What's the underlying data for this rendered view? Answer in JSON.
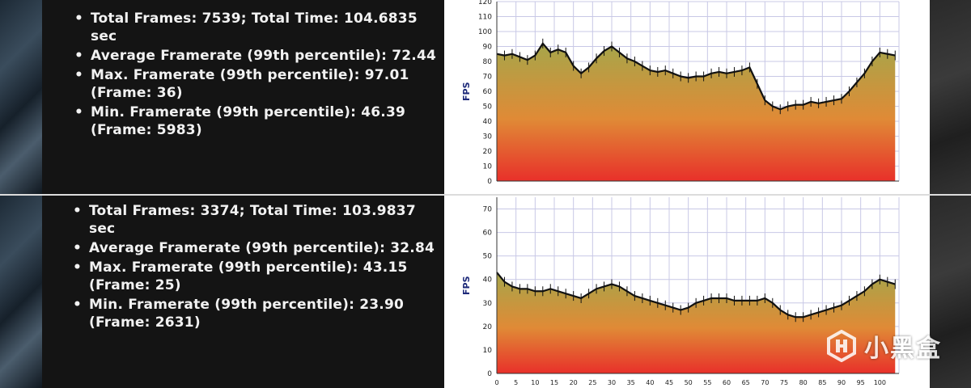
{
  "panels": [
    {
      "stats": [
        "Total Frames: 7539; Total Time: 104.6835 sec",
        "Average Framerate (99th percentile): 72.44",
        "Max. Framerate (99th percentile): 97.01 (Frame: 36)",
        "Min. Framerate (99th percentile): 46.39 (Frame: 5983)"
      ]
    },
    {
      "stats": [
        "Total Frames: 3374; Total Time: 103.9837 sec",
        "Average Framerate (99th percentile): 32.84",
        "Max. Framerate (99th percentile): 43.15 (Frame: 25)",
        "Min. Framerate (99th percentile): 23.90 (Frame: 2631)"
      ]
    }
  ],
  "watermark": "小黑盒",
  "colors": {
    "line": "#111111",
    "fill_top": "#a6a64a",
    "fill_bottom": "#e8302a",
    "axis_title": "#1e2a7a",
    "grid": "#c8c8e6"
  },
  "chart_data": [
    {
      "type": "area",
      "ylabel": "FPS",
      "ylim": [
        0,
        120
      ],
      "yticks": [
        0,
        10,
        20,
        30,
        40,
        50,
        60,
        70,
        80,
        90,
        100,
        110,
        120
      ],
      "xlim": [
        0,
        105
      ],
      "x": [
        0,
        2,
        4,
        6,
        8,
        10,
        12,
        14,
        16,
        18,
        20,
        22,
        24,
        26,
        28,
        30,
        32,
        34,
        36,
        38,
        40,
        42,
        44,
        46,
        48,
        50,
        52,
        54,
        56,
        58,
        60,
        62,
        64,
        66,
        68,
        70,
        72,
        74,
        76,
        78,
        80,
        82,
        84,
        86,
        88,
        90,
        92,
        94,
        96,
        98,
        100,
        102,
        104
      ],
      "values": [
        85,
        84,
        85,
        83,
        81,
        84,
        92,
        86,
        88,
        86,
        77,
        72,
        76,
        82,
        87,
        90,
        86,
        82,
        80,
        77,
        74,
        73,
        74,
        72,
        70,
        69,
        70,
        70,
        72,
        73,
        72,
        73,
        74,
        76,
        65,
        54,
        50,
        48,
        50,
        51,
        51,
        53,
        52,
        53,
        54,
        55,
        60,
        66,
        72,
        80,
        86,
        85,
        84
      ],
      "grid": true
    },
    {
      "type": "area",
      "ylabel": "FPS",
      "ylim": [
        0,
        75
      ],
      "yticks": [
        0,
        10,
        20,
        30,
        40,
        50,
        60,
        70
      ],
      "xlim": [
        0,
        105
      ],
      "xticks": [
        0,
        5,
        10,
        15,
        20,
        25,
        30,
        35,
        40,
        45,
        50,
        55,
        60,
        65,
        70,
        75,
        80,
        85,
        90,
        95,
        100
      ],
      "x": [
        0,
        2,
        4,
        6,
        8,
        10,
        12,
        14,
        16,
        18,
        20,
        22,
        24,
        26,
        28,
        30,
        32,
        34,
        36,
        38,
        40,
        42,
        44,
        46,
        48,
        50,
        52,
        54,
        56,
        58,
        60,
        62,
        64,
        66,
        68,
        70,
        72,
        74,
        76,
        78,
        80,
        82,
        84,
        86,
        88,
        90,
        92,
        94,
        96,
        98,
        100,
        102,
        104
      ],
      "values": [
        43,
        39,
        37,
        36,
        36,
        35,
        35,
        36,
        35,
        34,
        33,
        32,
        34,
        36,
        37,
        38,
        37,
        35,
        33,
        32,
        31,
        30,
        29,
        28,
        27,
        28,
        30,
        31,
        32,
        32,
        32,
        31,
        31,
        31,
        31,
        32,
        30,
        27,
        25,
        24,
        24,
        25,
        26,
        27,
        28,
        29,
        31,
        33,
        35,
        38,
        40,
        39,
        38
      ],
      "grid": true
    }
  ]
}
